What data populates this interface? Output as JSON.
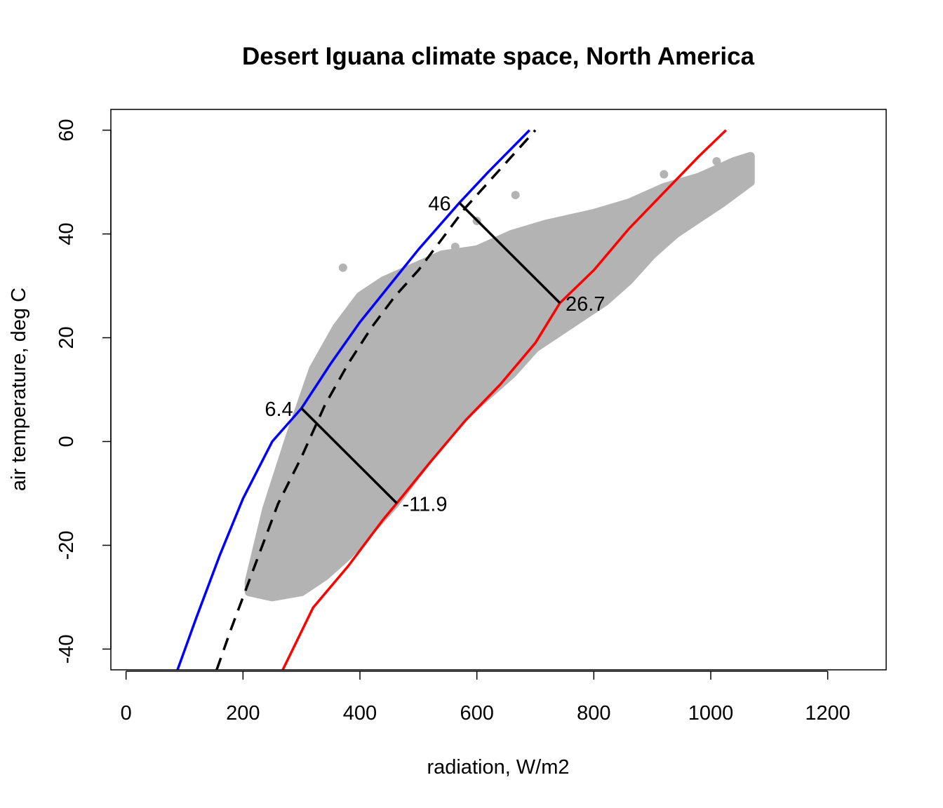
{
  "chart_data": {
    "type": "scatter",
    "title": "Desert Iguana climate space, North America",
    "xlabel": "radiation, W/m2",
    "ylabel": "air temperature, deg C",
    "xlim": [
      -26,
      1300
    ],
    "ylim": [
      -44,
      64
    ],
    "x_ticks": [
      "0",
      "200",
      "400",
      "600",
      "800",
      "1000",
      "1200"
    ],
    "y_ticks": [
      "-40",
      "-20",
      "0",
      "20",
      "40",
      "60"
    ],
    "grid": false,
    "legend": "none",
    "colors": {
      "points": "#b3b3b3",
      "upper_limit": "#0000ff",
      "lower_limit": "#ff0000",
      "dashed": "#000000",
      "segments": "#000000"
    },
    "point_cloud": {
      "description_color": "grey",
      "upper_edge": [
        [
          210,
          -27
        ],
        [
          240,
          -13
        ],
        [
          280,
          1
        ],
        [
          320,
          14
        ],
        [
          360,
          22
        ],
        [
          400,
          28
        ],
        [
          440,
          31
        ],
        [
          480,
          33
        ],
        [
          540,
          36
        ],
        [
          600,
          37
        ],
        [
          660,
          40
        ],
        [
          720,
          42
        ],
        [
          800,
          44
        ],
        [
          860,
          46
        ],
        [
          920,
          49
        ],
        [
          980,
          51
        ],
        [
          1040,
          54
        ],
        [
          1068,
          55
        ]
      ],
      "lower_edge": [
        [
          1068,
          50
        ],
        [
          1020,
          46
        ],
        [
          980,
          43
        ],
        [
          940,
          40
        ],
        [
          900,
          36
        ],
        [
          860,
          31
        ],
        [
          820,
          27
        ],
        [
          780,
          24
        ],
        [
          740,
          21
        ],
        [
          700,
          18
        ],
        [
          660,
          13
        ],
        [
          620,
          9
        ],
        [
          580,
          5
        ],
        [
          540,
          0
        ],
        [
          500,
          -6
        ],
        [
          460,
          -12
        ],
        [
          420,
          -17
        ],
        [
          380,
          -22
        ],
        [
          340,
          -26
        ],
        [
          300,
          -29
        ],
        [
          250,
          -30
        ],
        [
          210,
          -29
        ]
      ],
      "outliers": [
        [
          371,
          33.5
        ],
        [
          563,
          37.5
        ],
        [
          600,
          42.5
        ],
        [
          666,
          47.5
        ],
        [
          920,
          51.5
        ],
        [
          1010,
          54
        ]
      ]
    },
    "series": [
      {
        "color": "blue",
        "style": "solid",
        "points": [
          [
            88,
            -44
          ],
          [
            120,
            -34
          ],
          [
            160,
            -22
          ],
          [
            200,
            -11
          ],
          [
            250,
            0
          ],
          [
            300,
            6.4
          ],
          [
            350,
            15
          ],
          [
            400,
            23
          ],
          [
            450,
            30
          ],
          [
            500,
            37
          ],
          [
            570,
            46
          ],
          [
            620,
            52
          ],
          [
            690,
            60
          ]
        ]
      },
      {
        "color": "black",
        "style": "dashed",
        "points": [
          [
            155,
            -44
          ],
          [
            180,
            -36
          ],
          [
            220,
            -24
          ],
          [
            260,
            -12
          ],
          [
            300,
            -3
          ],
          [
            340,
            7
          ],
          [
            380,
            15
          ],
          [
            420,
            22
          ],
          [
            460,
            28
          ],
          [
            500,
            33
          ],
          [
            540,
            39
          ],
          [
            580,
            45
          ],
          [
            620,
            50
          ],
          [
            660,
            55
          ],
          [
            700,
            60
          ]
        ]
      },
      {
        "color": "red",
        "style": "solid",
        "points": [
          [
            268,
            -44
          ],
          [
            320,
            -32
          ],
          [
            380,
            -24
          ],
          [
            440,
            -15
          ],
          [
            463,
            -11.9
          ],
          [
            520,
            -4
          ],
          [
            580,
            4
          ],
          [
            640,
            11
          ],
          [
            700,
            19
          ],
          [
            742,
            26.7
          ],
          [
            800,
            33
          ],
          [
            860,
            41
          ],
          [
            920,
            48
          ],
          [
            980,
            55
          ],
          [
            1026,
            60
          ]
        ]
      }
    ],
    "segments": [
      {
        "from": [
          570,
          46
        ],
        "to": [
          742,
          26.7
        ]
      },
      {
        "from": [
          300,
          6.4
        ],
        "to": [
          463,
          -11.9
        ]
      }
    ],
    "annotations": [
      {
        "text": "46",
        "x": 570,
        "y": 46,
        "anchor": "end"
      },
      {
        "text": "26.7",
        "x": 742,
        "y": 26.7,
        "anchor": "start"
      },
      {
        "text": "6.4",
        "x": 300,
        "y": 6.4,
        "anchor": "end"
      },
      {
        "text": "-11.9",
        "x": 463,
        "y": -11.9,
        "anchor": "start"
      }
    ]
  }
}
